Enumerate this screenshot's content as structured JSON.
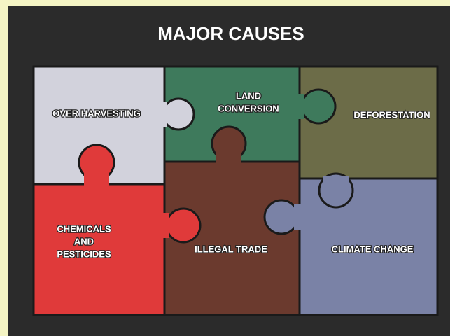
{
  "title": "MAJOR CAUSES",
  "pieces": [
    {
      "label_lines": [
        "OVER HARVESTING"
      ]
    },
    {
      "label_lines": [
        "LAND",
        "CONVERSION"
      ]
    },
    {
      "label_lines": [
        "DEFORESTATION"
      ]
    },
    {
      "label_lines": [
        "CHEMICALS",
        "AND",
        "PESTICIDES"
      ]
    },
    {
      "label_lines": [
        "ILLEGAL TRADE"
      ]
    },
    {
      "label_lines": [
        "CLIMATE CHANGE"
      ]
    }
  ]
}
